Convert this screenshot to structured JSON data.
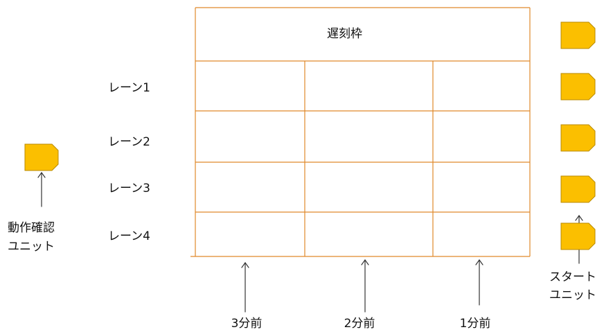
{
  "header": {
    "title": "遅刻枠"
  },
  "lanes": [
    "レーン1",
    "レーン2",
    "レーン3",
    "レーン4"
  ],
  "columns": [
    "3分前",
    "2分前",
    "1分前"
  ],
  "check_unit": {
    "label_line1": "動作確認",
    "label_line2": "ユニット",
    "icon": "unit-tag-icon"
  },
  "start_units": {
    "label_line1": "スタート",
    "label_line2": "ユニット",
    "count": 5,
    "icon": "unit-tag-icon"
  },
  "colors": {
    "grid_line": "#e0892a",
    "unit_fill": "#fbbf00",
    "unit_stroke": "#b88a00",
    "arrow": "#333333",
    "text": "#111111"
  }
}
